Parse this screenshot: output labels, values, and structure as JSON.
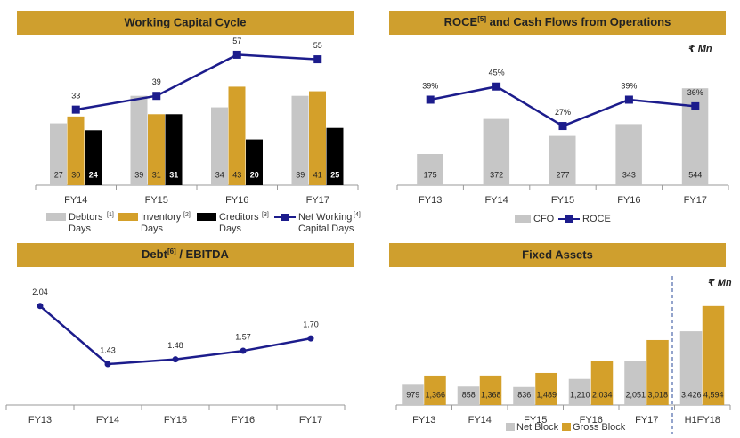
{
  "chart_data": [
    {
      "type": "bar",
      "title": "Working Capital Cycle",
      "categories": [
        "FY14",
        "FY15",
        "FY16",
        "FY17"
      ],
      "ylim": [
        0,
        70
      ],
      "series": [
        {
          "name": "Debtors Days",
          "note": "[1]",
          "color": "#c6c6c6",
          "values": [
            27,
            39,
            34,
            39
          ]
        },
        {
          "name": "Inventory Days",
          "note": "[2]",
          "color": "#d4a02a",
          "values": [
            30,
            31,
            43,
            41
          ]
        },
        {
          "name": "Creditors Days",
          "note": "[3]",
          "color": "#000000",
          "values": [
            24,
            31,
            20,
            25
          ]
        },
        {
          "name": "Net Working Capital Days",
          "note": "[4]",
          "type": "line",
          "color": "#1c1c8c",
          "values": [
            33,
            39,
            57,
            55
          ]
        }
      ]
    },
    {
      "type": "bar",
      "title": [
        "ROCE",
        "[5]",
        " and Cash Flows from Operations"
      ],
      "unit": "₹ Mn",
      "categories": [
        "FY13",
        "FY14",
        "FY15",
        "FY16",
        "FY17"
      ],
      "ylim": [
        0,
        800
      ],
      "y2lim": [
        0,
        65
      ],
      "series": [
        {
          "name": "CFO",
          "color": "#c6c6c6",
          "values": [
            175,
            372,
            277,
            343,
            544
          ]
        },
        {
          "name": "ROCE",
          "type": "line",
          "axis": "y2",
          "color": "#1c1c8c",
          "values": [
            39,
            45,
            27,
            39,
            36
          ],
          "value_labels": [
            "39%",
            "45%",
            "27%",
            "39%",
            "36%"
          ]
        }
      ]
    },
    {
      "type": "line",
      "title": [
        "Debt",
        "[6]",
        " / EBITDA"
      ],
      "categories": [
        "FY13",
        "FY14",
        "FY15",
        "FY16",
        "FY17"
      ],
      "ylim": [
        1.0,
        2.3
      ],
      "series": [
        {
          "color": "#1c1c8c",
          "values": [
            2.04,
            1.43,
            1.48,
            1.57,
            1.7
          ],
          "value_labels": [
            "2.04",
            "1.43",
            "1.48",
            "1.57",
            "1.70"
          ]
        }
      ]
    },
    {
      "type": "bar",
      "title": "Fixed Assets",
      "unit": "₹ Mn",
      "categories": [
        "FY13",
        "FY14",
        "FY15",
        "FY16",
        "FY17",
        "H1FY18"
      ],
      "ylim": [
        0,
        5000
      ],
      "series": [
        {
          "name": "Net Block",
          "color": "#c6c6c6",
          "values": [
            979,
            858,
            836,
            1210,
            2051,
            3426
          ],
          "value_labels": [
            "979",
            "858",
            "836",
            "1,210",
            "2,051",
            "3,426"
          ]
        },
        {
          "name": "Gross Block",
          "color": "#d4a02a",
          "values": [
            1366,
            1368,
            1489,
            2034,
            3018,
            4594
          ],
          "value_labels": [
            "1,366",
            "1,368",
            "1,489",
            "2,034",
            "3,018",
            "4,594"
          ]
        }
      ]
    }
  ]
}
